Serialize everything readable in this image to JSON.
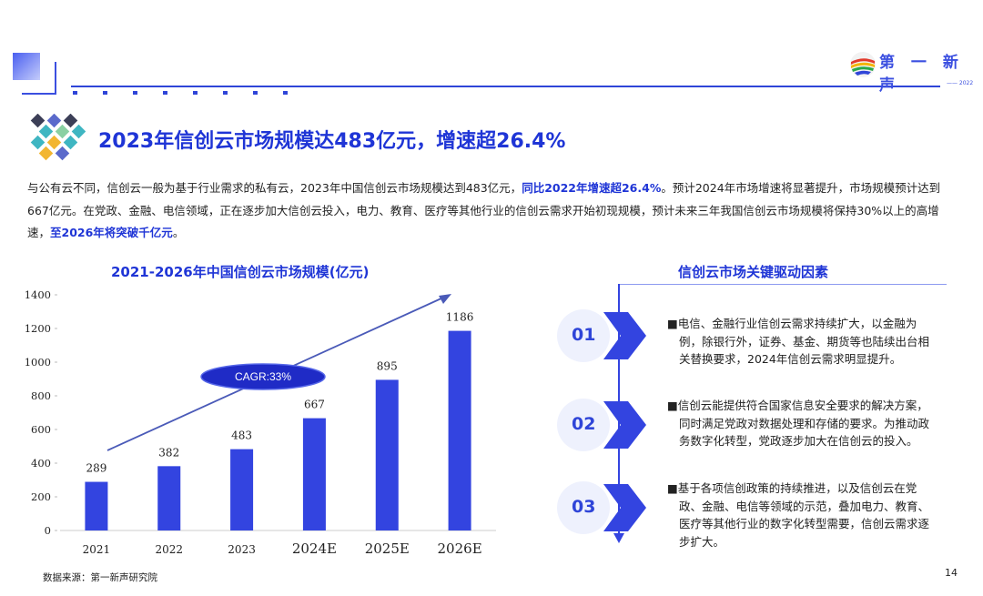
{
  "header": {
    "brand": "第 一 新 声",
    "brand_small": "—— 2022"
  },
  "title": "2023年信创云市场规模达483亿元，增速超26.4%",
  "intro": {
    "part1": "与公有云不同，信创云一般为基于行业需求的私有云，2023年中国信创云市场规模达到483亿元，",
    "bold1": "同比2022年增速超26.4%",
    "part2": "。预计2024年市场增速将显著提升，市场规模预计达到667亿元。在党政、金融、电信领域，正在逐步加大信创云投入，电力、教育、医疗等其他行业的信创云需求开始初现规模，预计未来三年我国信创云市场规模将保持30%以上的高增速，",
    "bold2": "至2026年将突破千亿元",
    "part3": "。"
  },
  "chart_data": {
    "type": "bar",
    "title": "2021-2026年中国信创云市场规模(亿元)",
    "categories": [
      "2021",
      "2022",
      "2023",
      "2024E",
      "2025E",
      "2026E"
    ],
    "values": [
      289,
      382,
      483,
      667,
      895,
      1186
    ],
    "ylim": [
      0,
      1400
    ],
    "yticks": [
      0,
      200,
      400,
      600,
      800,
      1000,
      1200,
      1400
    ],
    "annotation": "CAGR:33%",
    "bar_color": "#3344e0",
    "grid": false
  },
  "drivers": {
    "title": "信创云市场关键驱动因素",
    "items": [
      {
        "num": "01",
        "text": "■电信、金融行业信创云需求持续扩大，以金融为例，除银行外，证券、基金、期货等也陆续出台相关替换要求，2024年信创云需求明显提升。"
      },
      {
        "num": "02",
        "text": "■信创云能提供符合国家信息安全要求的解决方案，同时满足党政对数据处理和存储的要求。为推动政务数字化转型，党政逐步加大在信创云的投入。"
      },
      {
        "num": "03",
        "text": "■基于各项信创政策的持续推进，以及信创云在党政、金融、电信等领域的示范，叠加电力、教育、医疗等其他行业的数字化转型需要，信创云需求逐步扩大。"
      }
    ]
  },
  "footer": {
    "source": "数据来源：第一新声研究院",
    "page": "14"
  }
}
